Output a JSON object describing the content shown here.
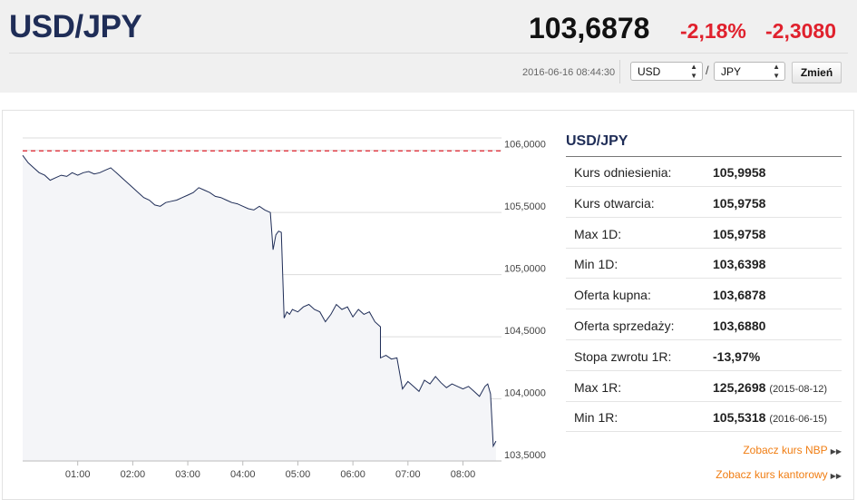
{
  "header": {
    "pair": "USD/JPY",
    "price": "103,6878",
    "change_pct": "-2,18%",
    "change_abs": "-2,3080",
    "timestamp": "2016-06-16 08:44:30",
    "base_currency": "USD",
    "quote_currency": "JPY",
    "slash": "/",
    "change_button": "Zmień"
  },
  "colors": {
    "title": "#1f2d57",
    "negative": "#e0212d",
    "link": "#f07d12",
    "reference_line": "#e0212d",
    "series_line": "#1f2d57"
  },
  "chart_data": {
    "type": "line",
    "x_ticks": [
      "01:00",
      "02:00",
      "03:00",
      "04:00",
      "05:00",
      "06:00",
      "07:00",
      "08:00"
    ],
    "y_ticks": [
      "106,0000",
      "105,5000",
      "105,0000",
      "104,5000",
      "104,0000",
      "103,5000"
    ],
    "ylim": [
      103.5,
      106.1
    ],
    "xlim": [
      0,
      8.7
    ],
    "reference_value": 105.9958,
    "grid": true,
    "series": [
      {
        "x": [
          0.0,
          0.1,
          0.2,
          0.3,
          0.4,
          0.5,
          0.6,
          0.7,
          0.8,
          0.9,
          1.0,
          1.1,
          1.2,
          1.3,
          1.4,
          1.5,
          1.6,
          1.7,
          1.8,
          1.9,
          2.0,
          2.1,
          2.2,
          2.3,
          2.4,
          2.5,
          2.6,
          2.7,
          2.8,
          2.9,
          3.0,
          3.1,
          3.2,
          3.3,
          3.4,
          3.5,
          3.6,
          3.7,
          3.8,
          3.9,
          4.0,
          4.1,
          4.2,
          4.3,
          4.4,
          4.5,
          4.55,
          4.6,
          4.65,
          4.7,
          4.75,
          4.8,
          4.85,
          4.9,
          5.0,
          5.1,
          5.2,
          5.3,
          5.4,
          5.5,
          5.6,
          5.7,
          5.8,
          5.9,
          6.0,
          6.1,
          6.2,
          6.3,
          6.4,
          6.5,
          6.5,
          6.6,
          6.7,
          6.8,
          6.9,
          7.0,
          7.1,
          7.2,
          7.3,
          7.4,
          7.5,
          7.6,
          7.7,
          7.8,
          7.9,
          8.0,
          8.1,
          8.2,
          8.3,
          8.4,
          8.45,
          8.5,
          8.55,
          8.6
        ],
        "y": [
          105.96,
          105.9,
          105.86,
          105.82,
          105.8,
          105.76,
          105.78,
          105.8,
          105.79,
          105.82,
          105.8,
          105.82,
          105.83,
          105.81,
          105.82,
          105.84,
          105.86,
          105.82,
          105.78,
          105.74,
          105.7,
          105.66,
          105.62,
          105.6,
          105.56,
          105.55,
          105.58,
          105.59,
          105.6,
          105.62,
          105.64,
          105.66,
          105.7,
          105.68,
          105.66,
          105.63,
          105.62,
          105.6,
          105.58,
          105.57,
          105.55,
          105.53,
          105.52,
          105.55,
          105.52,
          105.5,
          105.2,
          105.32,
          105.35,
          105.34,
          104.65,
          104.7,
          104.68,
          104.72,
          104.7,
          104.74,
          104.76,
          104.72,
          104.7,
          104.62,
          104.68,
          104.76,
          104.72,
          104.74,
          104.66,
          104.72,
          104.68,
          104.7,
          104.62,
          104.58,
          104.33,
          104.35,
          104.32,
          104.33,
          104.08,
          104.14,
          104.1,
          104.06,
          104.15,
          104.12,
          104.18,
          104.13,
          104.09,
          104.12,
          104.1,
          104.08,
          104.1,
          104.06,
          104.02,
          104.1,
          104.12,
          104.04,
          103.62,
          103.66
        ]
      }
    ]
  },
  "sidebar": {
    "title": "USD/JPY",
    "rows": [
      {
        "label": "Kurs odniesienia:",
        "value": "105,9958",
        "date": ""
      },
      {
        "label": "Kurs otwarcia:",
        "value": "105,9758",
        "date": ""
      },
      {
        "label": "Max 1D:",
        "value": "105,9758",
        "date": ""
      },
      {
        "label": "Min 1D:",
        "value": "103,6398",
        "date": ""
      },
      {
        "label": "Oferta kupna:",
        "value": "103,6878",
        "date": ""
      },
      {
        "label": "Oferta sprzedaży:",
        "value": "103,6880",
        "date": ""
      },
      {
        "label": "Stopa zwrotu 1R:",
        "value": "-13,97%",
        "date": ""
      },
      {
        "label": "Max 1R:",
        "value": "125,2698",
        "date": "(2015-08-12)"
      },
      {
        "label": "Min 1R:",
        "value": "105,5318",
        "date": "(2016-06-15)"
      }
    ],
    "link_nbp": "Zobacz kurs NBP",
    "link_kantor": "Zobacz kurs kantorowy"
  }
}
